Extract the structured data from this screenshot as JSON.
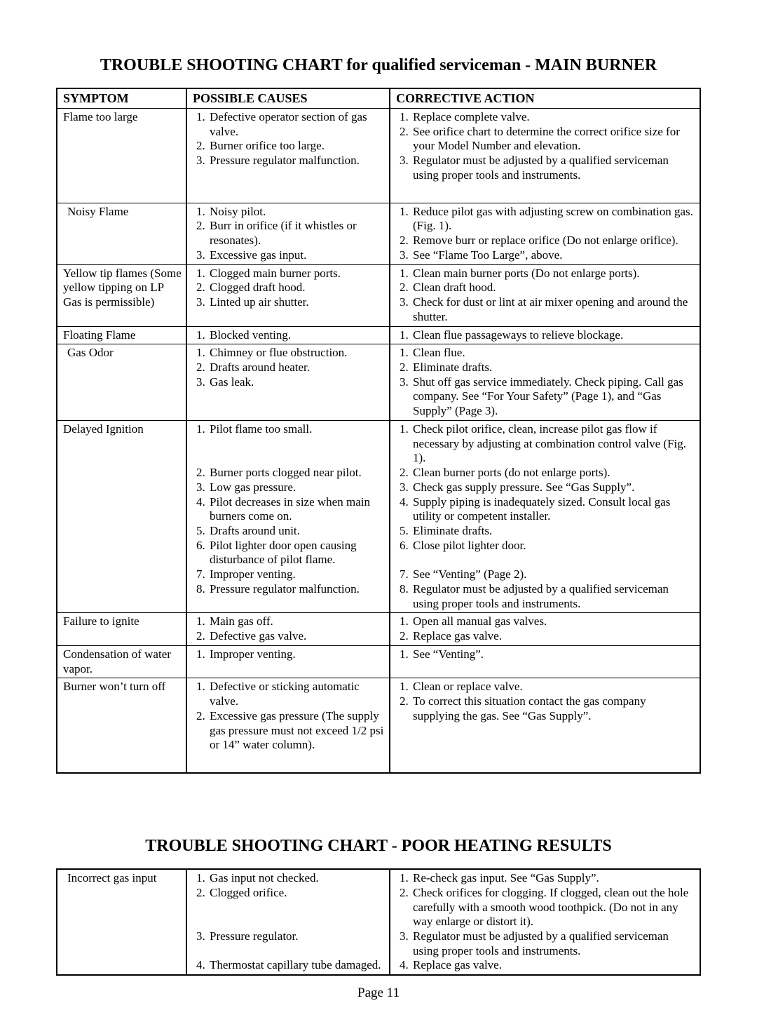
{
  "title1": "TROUBLE SHOOTING CHART for qualified serviceman - MAIN BURNER",
  "title2": "TROUBLE SHOOTING CHART - POOR HEATING RESULTS",
  "headers": {
    "symptom": "SYMPTOM",
    "cause": "POSSIBLE CAUSES",
    "action": "CORRECTIVE ACTION"
  },
  "page_label": "Page 11",
  "table1": [
    {
      "symptom": "Flame too large",
      "causes": [
        "Defective operator section of gas valve.",
        "Burner orifice too large.",
        "Pressure regulator malfunction."
      ],
      "actions": [
        "Replace complete valve.",
        "See orifice chart to determine the correct orifice size for your Model Number and elevation.",
        "Regulator must be adjusted by a qualified serviceman using proper tools and instruments."
      ],
      "pad": true
    },
    {
      "symptom": "Noisy Flame",
      "causes": [
        "Noisy pilot.",
        "Burr in orifice (if it whistles or resonates).",
        "Excessive gas input."
      ],
      "actions": [
        "Reduce pilot gas with adjusting screw on combination gas.  (Fig. 1).",
        "Remove burr or replace orifice (Do not enlarge orifice).",
        "See “Flame Too Large”, above."
      ],
      "indent": true
    },
    {
      "symptom": "Yellow tip flames (Some yellow tipping on LP Gas is permissible)",
      "causes": [
        "Clogged main burner ports.",
        "Clogged draft hood.",
        "Linted up air shutter."
      ],
      "actions": [
        "Clean main burner ports (Do not enlarge ports).",
        "Clean draft hood.",
        "Check for dust or lint at air mixer opening and around the shutter."
      ]
    },
    {
      "symptom": "Floating Flame",
      "causes": [
        "Blocked venting."
      ],
      "actions": [
        "Clean flue passageways to relieve blockage."
      ]
    },
    {
      "symptom": "Gas Odor",
      "causes": [
        "Chimney or flue obstruction.",
        "Drafts around heater.",
        "Gas leak."
      ],
      "actions": [
        "Clean flue.",
        "Eliminate drafts.",
        "Shut off gas service immediately.  Check piping.  Call gas company.  See “For Your Safety” (Page 1), and “Gas Supply” (Page 3)."
      ],
      "indent": true
    },
    {
      "symptom": "Delayed Ignition",
      "causes": [
        "Pilot flame too small.",
        "Burner ports clogged near pilot.",
        "Low gas pressure.",
        "Pilot decreases in size when main burners come on.",
        "Drafts around unit.",
        "Pilot lighter door open causing disturbance of pilot flame.",
        "Improper venting.",
        "Pressure regulator malfunction."
      ],
      "actions": [
        "Check pilot orifice, clean, increase pilot gas flow if necessary by adjusting at combination control valve (Fig. 1).",
        "Clean burner ports (do not enlarge ports).",
        "Check gas supply pressure.  See “Gas Supply”.",
        "Supply piping is inadequately sized.  Consult local gas utility or competent installer.",
        "Eliminate drafts.",
        "Close pilot lighter door.",
        "See “Venting” (Page 2).",
        "Regulator must be adjusted by a qualified serviceman using proper tools and instruments."
      ],
      "align": true
    },
    {
      "symptom": "Failure to ignite",
      "causes": [
        "Main gas off.",
        "Defective gas valve."
      ],
      "actions": [
        "Open all manual gas valves.",
        "Replace gas valve."
      ]
    },
    {
      "symptom": "Condensation of water vapor.",
      "causes": [
        "Improper venting."
      ],
      "actions": [
        "See “Venting”."
      ]
    },
    {
      "symptom": "Burner won’t turn off",
      "causes": [
        "Defective or sticking automatic valve.",
        "Excessive gas pressure (The supply gas pressure must not exceed 1/2 psi or 14” water column)."
      ],
      "actions": [
        "Clean or replace valve.",
        "To correct this situation contact the gas company supplying the gas.  See “Gas Supply”."
      ],
      "pad": true
    }
  ],
  "table2": [
    {
      "symptom": "Incorrect gas input",
      "causes": [
        "Gas input not checked.",
        "Clogged orifice.",
        "Pressure regulator.",
        "Thermostat capillary tube damaged."
      ],
      "actions": [
        "Re-check gas input.  See “Gas Supply”.",
        "Check orifices for clogging.  If clogged, clean out the hole carefully with a smooth wood toothpick.  (Do not in any way enlarge or distort it).",
        "Regulator must be adjusted by a qualified serviceman using proper tools and instruments.",
        "Replace gas valve."
      ],
      "align": true,
      "indent": true
    }
  ]
}
